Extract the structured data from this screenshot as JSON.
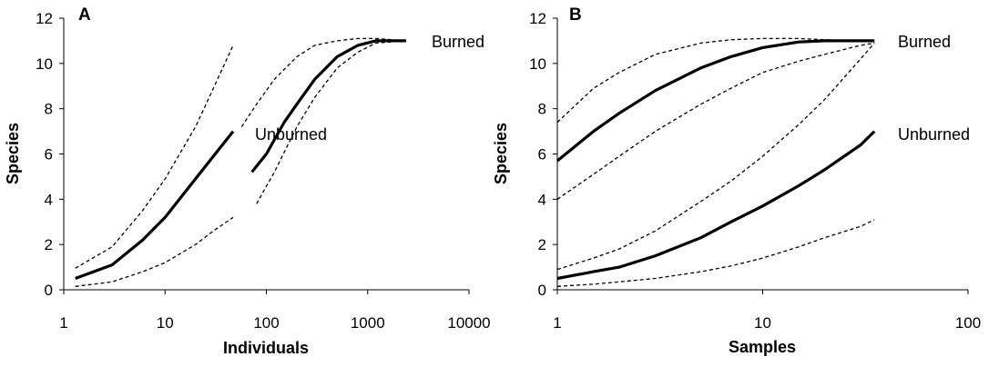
{
  "chart_data": [
    {
      "type": "line",
      "panel_label": "A",
      "xlabel": "Individuals",
      "ylabel": "Species",
      "x_scale": "log",
      "xlim": [
        1,
        10000
      ],
      "ylim": [
        0,
        12
      ],
      "x_ticks": [
        "1",
        "10",
        "100",
        "1000",
        "10000"
      ],
      "y_ticks": [
        "0",
        "2",
        "4",
        "6",
        "8",
        "10",
        "12"
      ],
      "grid": false,
      "legend": "none",
      "series": [
        {
          "name": "Unburned",
          "style": "solid",
          "x": [
            1.3,
            3,
            6,
            10,
            20,
            30,
            47
          ],
          "y": [
            0.5,
            1.1,
            2.2,
            3.2,
            4.9,
            5.9,
            7.0
          ]
        },
        {
          "style": "dashed",
          "x": [
            1.3,
            3,
            6,
            10,
            20,
            30,
            47
          ],
          "y": [
            0.95,
            1.9,
            3.5,
            4.9,
            7.2,
            8.9,
            10.8
          ]
        },
        {
          "style": "dashed",
          "x": [
            1.3,
            3,
            6,
            10,
            20,
            30,
            47
          ],
          "y": [
            0.15,
            0.35,
            0.8,
            1.2,
            2.0,
            2.6,
            3.2
          ]
        },
        {
          "name": "Burned",
          "style": "solid",
          "x": [
            72,
            100,
            150,
            200,
            300,
            500,
            800,
            1200,
            2400
          ],
          "y": [
            5.2,
            6.0,
            7.4,
            8.2,
            9.3,
            10.3,
            10.8,
            11.0,
            11.0
          ]
        },
        {
          "style": "dashed",
          "x": [
            57,
            80,
            120,
            200,
            300,
            500,
            800,
            1200,
            2400
          ],
          "y": [
            7.2,
            8.2,
            9.3,
            10.3,
            10.8,
            11.0,
            11.1,
            11.1,
            11.0
          ]
        },
        {
          "style": "dashed",
          "x": [
            80,
            120,
            200,
            300,
            500,
            800,
            1200,
            2400
          ],
          "y": [
            3.8,
            5.2,
            7.2,
            8.5,
            9.8,
            10.5,
            10.9,
            11.0
          ]
        }
      ],
      "annotations": [
        "Burned",
        "Unburned"
      ]
    },
    {
      "type": "line",
      "panel_label": "B",
      "xlabel": "Samples",
      "ylabel": "Species",
      "x_scale": "log",
      "xlim": [
        1,
        100
      ],
      "ylim": [
        0,
        12
      ],
      "x_ticks": [
        "1",
        "10",
        "100"
      ],
      "y_ticks": [
        "0",
        "2",
        "4",
        "6",
        "8",
        "10",
        "12"
      ],
      "grid": false,
      "legend": "none",
      "series": [
        {
          "name": "Burned",
          "style": "solid",
          "x": [
            1,
            1.5,
            2,
            3,
            5,
            7,
            10,
            15,
            20,
            30,
            35
          ],
          "y": [
            5.7,
            7.0,
            7.8,
            8.8,
            9.8,
            10.3,
            10.7,
            10.95,
            11.0,
            11.0,
            11.0
          ]
        },
        {
          "style": "dashed",
          "x": [
            1,
            1.5,
            2,
            3,
            5,
            7,
            10,
            15,
            20,
            30,
            35
          ],
          "y": [
            7.4,
            8.9,
            9.6,
            10.4,
            10.9,
            11.05,
            11.1,
            11.1,
            11.05,
            11.0,
            11.0
          ]
        },
        {
          "style": "dashed",
          "x": [
            1,
            1.5,
            2,
            3,
            5,
            7,
            10,
            15,
            20,
            30,
            35
          ],
          "y": [
            4.0,
            5.1,
            5.9,
            7.0,
            8.2,
            8.9,
            9.6,
            10.1,
            10.4,
            10.8,
            10.9
          ]
        },
        {
          "name": "Unburned",
          "style": "solid",
          "x": [
            1,
            1.5,
            2,
            3,
            5,
            7,
            10,
            15,
            20,
            30,
            35
          ],
          "y": [
            0.5,
            0.8,
            1.0,
            1.5,
            2.3,
            3.0,
            3.7,
            4.6,
            5.3,
            6.4,
            7.0
          ]
        },
        {
          "style": "dashed",
          "x": [
            1,
            1.5,
            2,
            3,
            5,
            7,
            10,
            15,
            20,
            30,
            35
          ],
          "y": [
            0.9,
            1.4,
            1.8,
            2.6,
            3.9,
            4.8,
            5.9,
            7.3,
            8.4,
            10.2,
            10.9
          ]
        },
        {
          "style": "dashed",
          "x": [
            1,
            1.5,
            2,
            3,
            5,
            7,
            10,
            15,
            20,
            30,
            35
          ],
          "y": [
            0.15,
            0.25,
            0.35,
            0.5,
            0.8,
            1.05,
            1.4,
            1.9,
            2.3,
            2.8,
            3.1
          ]
        }
      ],
      "annotations": [
        "Burned",
        "Unburned"
      ]
    }
  ]
}
